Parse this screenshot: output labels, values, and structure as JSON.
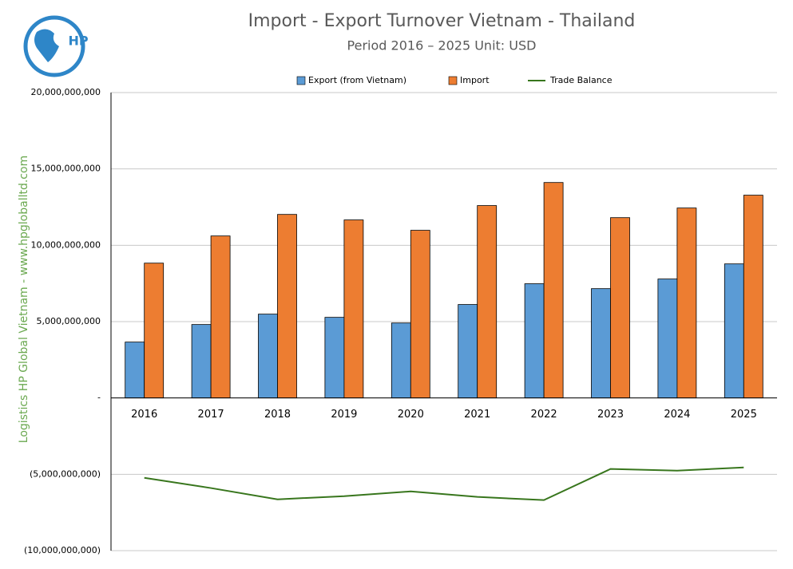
{
  "chart_data": {
    "type": "bar",
    "title": "Import - Export Turnover Vietnam - Thailand",
    "subtitle": "Period 2016 – 2025  Unit: USD",
    "side_text": "Logistics HP Global Vietnam - www.hpgloballtd.com",
    "logo_text": "HP",
    "categories": [
      "2016",
      "2017",
      "2018",
      "2019",
      "2020",
      "2021",
      "2022",
      "2023",
      "2024",
      "2025"
    ],
    "series": [
      {
        "name": "Export (from Vietnam)",
        "type": "bar",
        "color": "#5b9bd5",
        "values": [
          3660000000,
          4810000000,
          5490000000,
          5280000000,
          4910000000,
          6120000000,
          7480000000,
          7160000000,
          7790000000,
          8780000000
        ]
      },
      {
        "name": "Import",
        "type": "bar",
        "color": "#ed7d31",
        "values": [
          8830000000,
          10610000000,
          12020000000,
          11660000000,
          10980000000,
          12600000000,
          14110000000,
          11810000000,
          12440000000,
          13280000000
        ]
      },
      {
        "name": "Trade Balance",
        "type": "line",
        "color": "#38761d",
        "values": [
          -5230000000,
          -5900000000,
          -6640000000,
          -6430000000,
          -6120000000,
          -6480000000,
          -6690000000,
          -4650000000,
          -4760000000,
          -4550000000
        ]
      }
    ],
    "ylim": [
      -10000000000,
      20000000000
    ],
    "yticks": [
      {
        "value": -10000000000,
        "label": "(10,000,000,000)"
      },
      {
        "value": -5000000000,
        "label": "(5,000,000,000)"
      },
      {
        "value": 0,
        "label": "-"
      },
      {
        "value": 5000000000,
        "label": "5,000,000,000"
      },
      {
        "value": 10000000000,
        "label": "10,000,000,000"
      },
      {
        "value": 15000000000,
        "label": "15,000,000,000"
      },
      {
        "value": 20000000000,
        "label": "20,000,000,000"
      }
    ],
    "grid": true,
    "legend": "top"
  }
}
